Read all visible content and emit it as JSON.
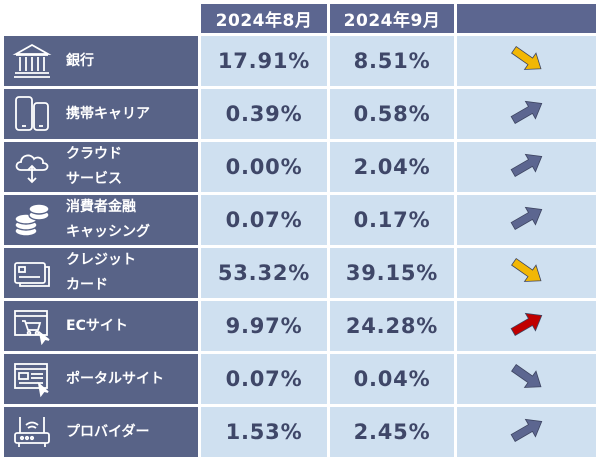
{
  "header": {
    "month1": "2024年8月",
    "month2": "2024年9月"
  },
  "rows": [
    {
      "icon": "bank-icon",
      "label_line1": "銀行",
      "label_line2": "",
      "aug": "17.91%",
      "sep": "8.51%",
      "trend": "down",
      "trend_color": "#f2b705"
    },
    {
      "icon": "smartphone-icon",
      "label_line1": "携帯キャリア",
      "label_line2": "",
      "aug": "0.39%",
      "sep": "0.58%",
      "trend": "up",
      "trend_color": "#5c6690"
    },
    {
      "icon": "cloud-icon",
      "label_line1": "クラウド",
      "label_line2": "サービス",
      "aug": "0.00%",
      "sep": "2.04%",
      "trend": "up",
      "trend_color": "#5c6690"
    },
    {
      "icon": "coins-icon",
      "label_line1": "消費者金融",
      "label_line2": "キャッシング",
      "aug": "0.07%",
      "sep": "0.17%",
      "trend": "up",
      "trend_color": "#5c6690"
    },
    {
      "icon": "credit-card-icon",
      "label_line1": "クレジット",
      "label_line2": "カード",
      "aug": "53.32%",
      "sep": "39.15%",
      "trend": "down",
      "trend_color": "#f2b705"
    },
    {
      "icon": "shopping-cart-icon",
      "label_line1": "ECサイト",
      "label_line2": "",
      "aug": "9.97%",
      "sep": "24.28%",
      "trend": "up",
      "trend_color": "#c00000"
    },
    {
      "icon": "portal-site-icon",
      "label_line1": "ポータルサイト",
      "label_line2": "",
      "aug": "0.07%",
      "sep": "0.04%",
      "trend": "down",
      "trend_color": "#5c6690"
    },
    {
      "icon": "router-icon",
      "label_line1": "プロバイダー",
      "label_line2": "",
      "aug": "1.53%",
      "sep": "2.45%",
      "trend": "up",
      "trend_color": "#5c6690"
    }
  ]
}
